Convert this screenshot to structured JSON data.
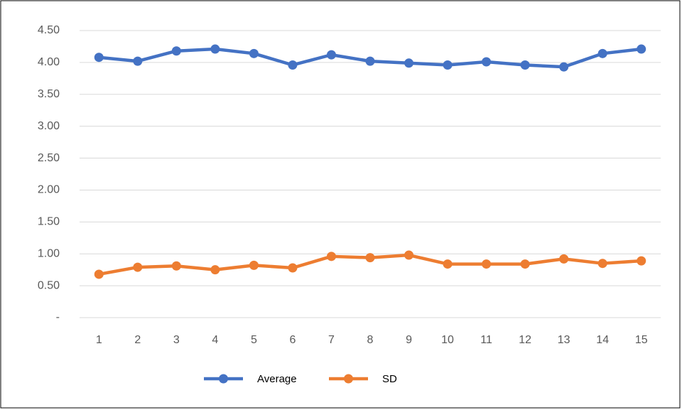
{
  "chart_data": {
    "type": "line",
    "categories": [
      "1",
      "2",
      "3",
      "4",
      "5",
      "6",
      "7",
      "8",
      "9",
      "10",
      "11",
      "12",
      "13",
      "14",
      "15"
    ],
    "series": [
      {
        "name": "Average",
        "color": "#4472c4",
        "values": [
          4.08,
          4.02,
          4.18,
          4.21,
          4.14,
          3.96,
          4.12,
          4.02,
          3.99,
          3.96,
          4.01,
          3.96,
          3.93,
          4.14,
          4.21
        ]
      },
      {
        "name": "SD",
        "color": "#ed7d31",
        "values": [
          0.68,
          0.79,
          0.81,
          0.75,
          0.82,
          0.78,
          0.96,
          0.94,
          0.98,
          0.84,
          0.84,
          0.84,
          0.92,
          0.85,
          0.89
        ]
      }
    ],
    "ylim": [
      0,
      4.5
    ],
    "yticks": [
      {
        "value": 0,
        "label": "-"
      },
      {
        "value": 0.5,
        "label": "0.50"
      },
      {
        "value": 1,
        "label": "1.00"
      },
      {
        "value": 1.5,
        "label": "1.50"
      },
      {
        "value": 2,
        "label": "2.00"
      },
      {
        "value": 2.5,
        "label": "2.50"
      },
      {
        "value": 3,
        "label": "3.00"
      },
      {
        "value": 3.5,
        "label": "3.50"
      },
      {
        "value": 4,
        "label": "4.00"
      },
      {
        "value": 4.5,
        "label": "4.50"
      }
    ],
    "grid": true,
    "legend": "bottom"
  }
}
